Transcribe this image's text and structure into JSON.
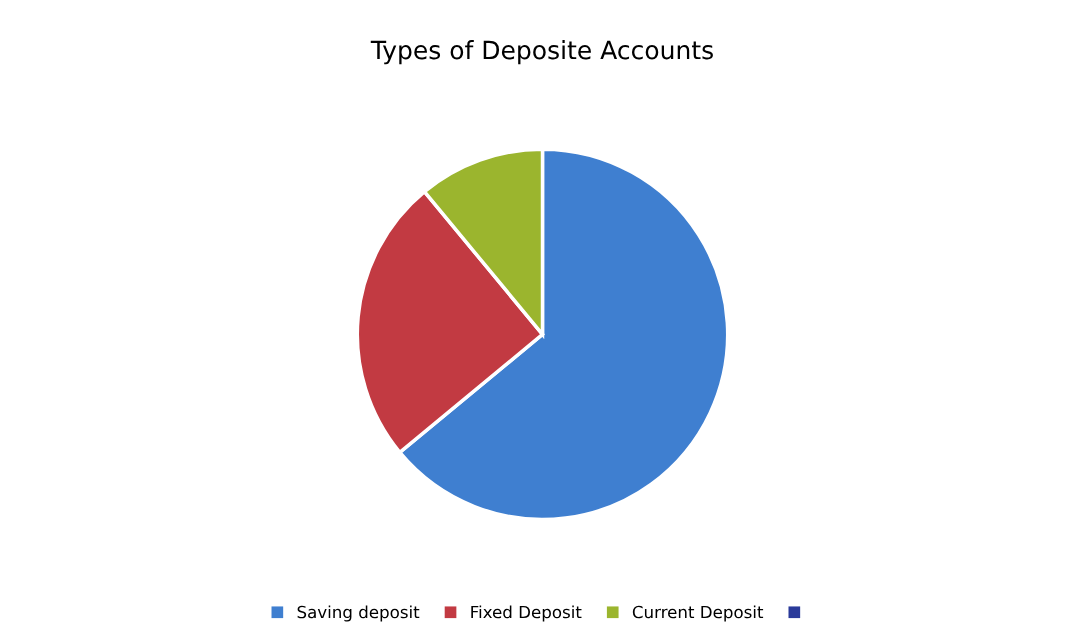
{
  "chart_data": {
    "type": "pie",
    "title": "Types of Deposite Accounts",
    "categories": [
      "Saving deposit",
      "Fixed Deposit",
      "Current Deposit",
      null
    ],
    "values": [
      64,
      25,
      11,
      0
    ],
    "colors": [
      "#3f7fd0",
      "#c23a42",
      "#9bb52e",
      "#2a3a9a"
    ],
    "legend": "bottom"
  }
}
